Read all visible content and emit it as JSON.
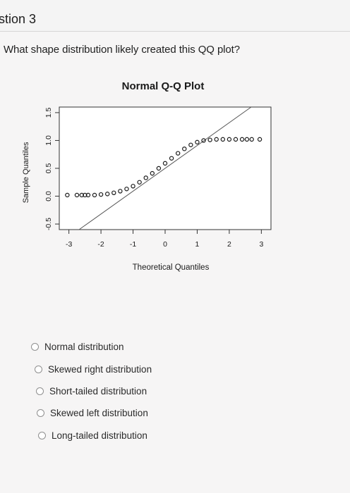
{
  "header": {
    "section_title": "stion 3"
  },
  "question": {
    "text": "What shape distribution likely created this QQ plot?"
  },
  "chart_data": {
    "type": "scatter",
    "title": "Normal Q-Q Plot",
    "xlabel": "Theoretical Quantiles",
    "ylabel": "Sample Quantiles",
    "xlim": [
      -3.3,
      3.3
    ],
    "ylim": [
      -0.6,
      1.6
    ],
    "x_ticks": [
      "-3",
      "-2",
      "-1",
      "0",
      "1",
      "2",
      "3"
    ],
    "y_ticks": [
      "-0.5",
      "0.0",
      "0.5",
      "1.0",
      "1.5"
    ],
    "reference_line": {
      "intercept": 0.5,
      "slope": 0.41
    },
    "series": [
      {
        "points": [
          [
            -3.05,
            0.02
          ],
          [
            -2.75,
            0.02
          ],
          [
            -2.6,
            0.02
          ],
          [
            -2.5,
            0.02
          ],
          [
            -2.4,
            0.02
          ],
          [
            -2.2,
            0.02
          ],
          [
            -2.0,
            0.03
          ],
          [
            -1.8,
            0.04
          ],
          [
            -1.6,
            0.06
          ],
          [
            -1.4,
            0.09
          ],
          [
            -1.2,
            0.13
          ],
          [
            -1.0,
            0.18
          ],
          [
            -0.8,
            0.25
          ],
          [
            -0.6,
            0.33
          ],
          [
            -0.4,
            0.41
          ],
          [
            -0.2,
            0.5
          ],
          [
            0.0,
            0.59
          ],
          [
            0.2,
            0.68
          ],
          [
            0.4,
            0.77
          ],
          [
            0.6,
            0.85
          ],
          [
            0.8,
            0.92
          ],
          [
            1.0,
            0.97
          ],
          [
            1.2,
            1.0
          ],
          [
            1.4,
            1.01
          ],
          [
            1.6,
            1.02
          ],
          [
            1.8,
            1.02
          ],
          [
            2.0,
            1.02
          ],
          [
            2.2,
            1.02
          ],
          [
            2.4,
            1.02
          ],
          [
            2.55,
            1.02
          ],
          [
            2.7,
            1.02
          ],
          [
            2.95,
            1.02
          ]
        ]
      }
    ],
    "colors": {
      "points": "#1a1a1a",
      "line": "#555555"
    }
  },
  "answers": [
    {
      "label": "Normal distribution"
    },
    {
      "label": "Skewed right distribution"
    },
    {
      "label": "Short-tailed distribution"
    },
    {
      "label": "Skewed left distribution"
    },
    {
      "label": "Long-tailed distribution"
    }
  ]
}
